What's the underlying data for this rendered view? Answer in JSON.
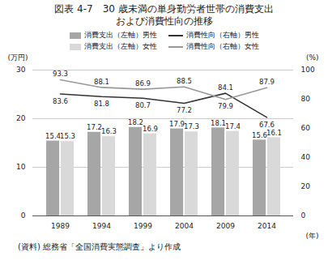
{
  "chart_data": {
    "type": "bar",
    "title": "図表 4-7　30 歳未満の単身勤労者世帯の消費支出",
    "subtitle": "および消費性向の推移",
    "caption": "(資料) 総務省「全国消費実態調査」より作成",
    "x_label": "(年)",
    "y_label": "(万円)",
    "y2_label": "(%)",
    "categories": [
      "1989",
      "1994",
      "1999",
      "2004",
      "2009",
      "2014"
    ],
    "series": [
      {
        "name": "消費支出（左軸）男性",
        "type": "bar",
        "color": "#a6a6a6",
        "values": [
          15.4,
          17.2,
          18.2,
          17.9,
          18.1,
          15.6
        ]
      },
      {
        "name": "消費支出（左軸）女性",
        "type": "bar",
        "color": "#d9d9d9",
        "values": [
          15.3,
          16.3,
          16.9,
          17.3,
          17.4,
          16.1
        ]
      },
      {
        "name": "消費性向（右軸）男性",
        "type": "line",
        "axis": "y2",
        "color": "#333333",
        "values": [
          83.6,
          81.8,
          80.7,
          77.2,
          84.1,
          67.6
        ]
      },
      {
        "name": "消費性向（右軸）女性",
        "type": "line",
        "axis": "y2",
        "color": "#999999",
        "values": [
          93.3,
          88.1,
          86.9,
          88.5,
          79.9,
          87.9
        ]
      }
    ],
    "ylim": [
      0,
      30
    ],
    "yticks": [
      0,
      10,
      20,
      30
    ],
    "y2lim": [
      0,
      100
    ],
    "y2ticks": [
      0,
      20,
      40,
      60,
      80,
      100
    ],
    "data_labels": true,
    "grid": true,
    "legend": "top"
  }
}
